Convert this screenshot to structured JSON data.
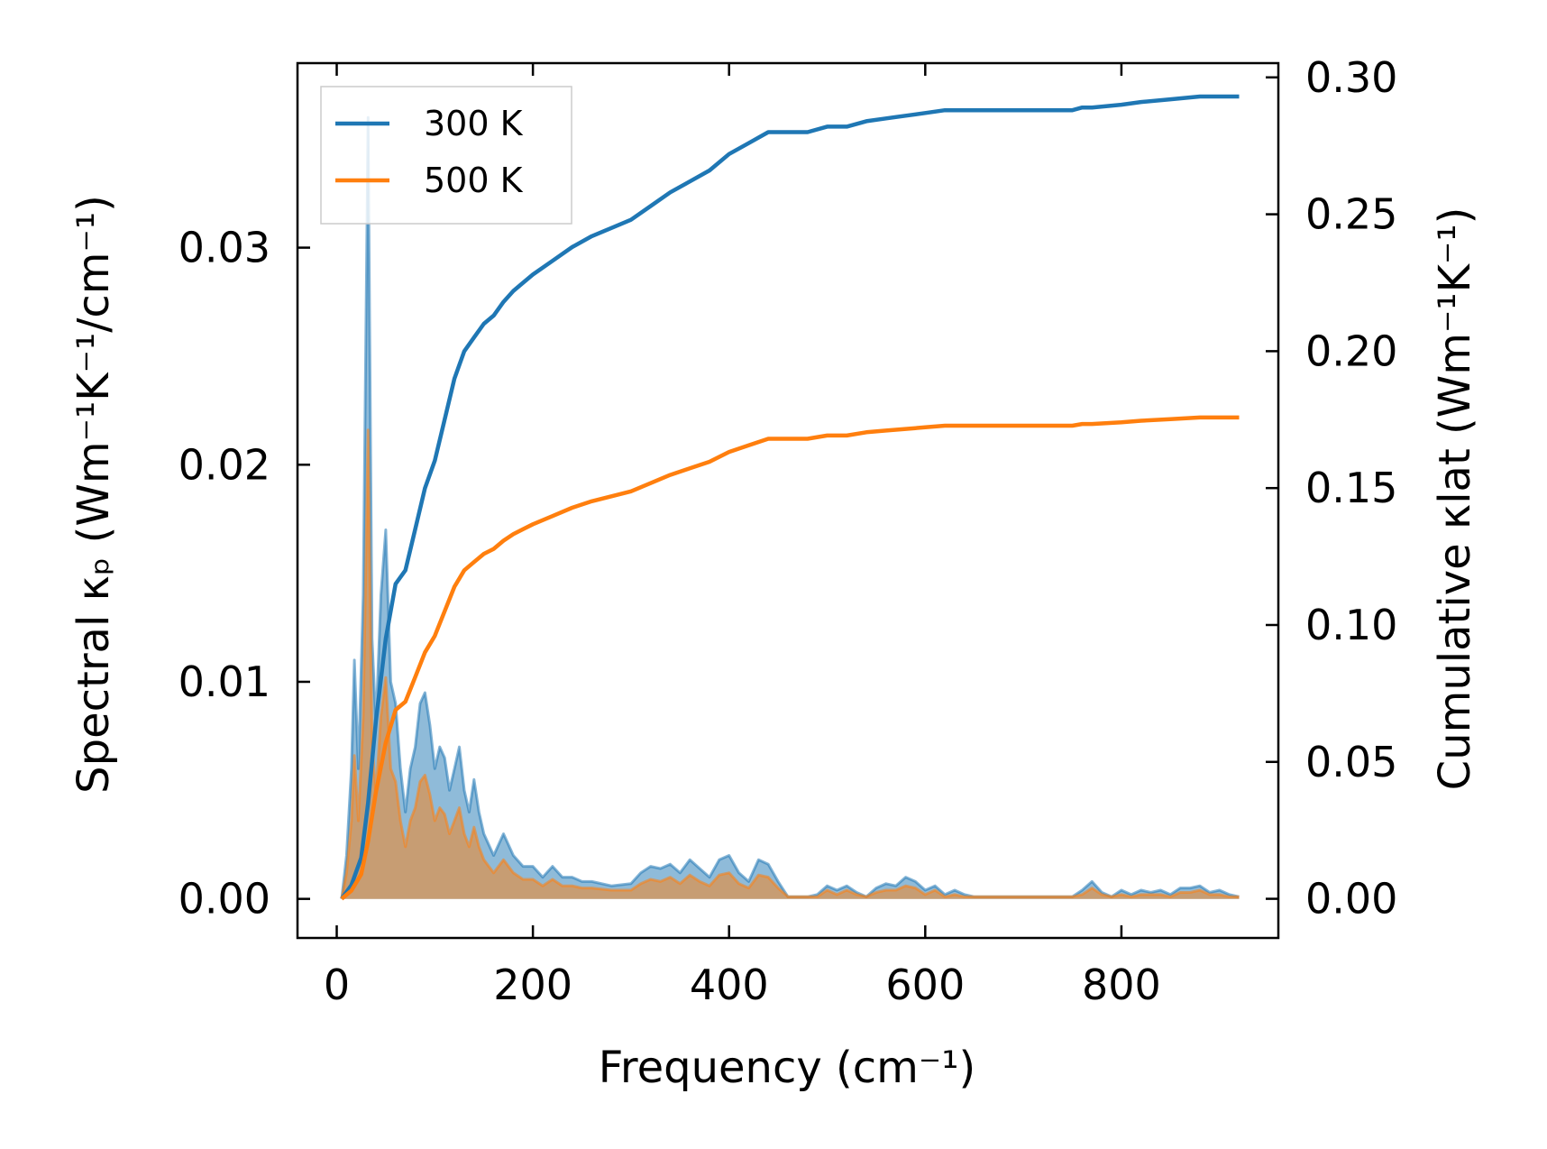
{
  "chart_data": {
    "type": "line",
    "xlabel": "Frequency (cm⁻¹)",
    "ylabel_left": "Spectral κₚ (Wm⁻¹K⁻¹/cm⁻¹)",
    "ylabel_right": "Cumulative κlat (Wm⁻¹K⁻¹)",
    "xlim": [
      -40,
      960
    ],
    "ylim_left": [
      -0.0018,
      0.0385
    ],
    "ylim_right": [
      -0.0143,
      0.3052
    ],
    "xticks": [
      0,
      200,
      400,
      600,
      800
    ],
    "yticks_left": [
      0.0,
      0.01,
      0.02,
      0.03
    ],
    "yticks_right": [
      0.0,
      0.05,
      0.1,
      0.15,
      0.2,
      0.25,
      0.3
    ],
    "tick_labels_x": [
      "0",
      "200",
      "400",
      "600",
      "800"
    ],
    "tick_labels_left": [
      "0.00",
      "0.01",
      "0.02",
      "0.03"
    ],
    "tick_labels_right": [
      "0.00",
      "0.05",
      "0.10",
      "0.15",
      "0.20",
      "0.25",
      "0.30"
    ],
    "legend_position": "top-left",
    "series": [
      {
        "name": "300 K",
        "color": "#1f77b4",
        "spectral": {
          "x": [
            5,
            10,
            15,
            18,
            22,
            27,
            32,
            36,
            40,
            45,
            50,
            55,
            60,
            65,
            70,
            75,
            80,
            85,
            90,
            95,
            100,
            105,
            110,
            115,
            120,
            125,
            130,
            135,
            140,
            145,
            150,
            160,
            170,
            180,
            190,
            200,
            210,
            220,
            230,
            240,
            250,
            260,
            280,
            300,
            310,
            320,
            330,
            340,
            350,
            360,
            370,
            380,
            390,
            400,
            410,
            420,
            430,
            440,
            450,
            460,
            470,
            480,
            490,
            500,
            510,
            520,
            530,
            540,
            550,
            560,
            570,
            580,
            590,
            600,
            610,
            620,
            630,
            640,
            650,
            700,
            750,
            760,
            770,
            780,
            790,
            800,
            810,
            820,
            830,
            840,
            850,
            860,
            870,
            880,
            890,
            900,
            910,
            920
          ],
          "y": [
            0,
            0.002,
            0.006,
            0.011,
            0.006,
            0.014,
            0.036,
            0.012,
            0.008,
            0.014,
            0.017,
            0.01,
            0.009,
            0.006,
            0.004,
            0.006,
            0.007,
            0.009,
            0.0095,
            0.008,
            0.006,
            0.007,
            0.0065,
            0.005,
            0.006,
            0.007,
            0.005,
            0.004,
            0.0055,
            0.004,
            0.003,
            0.002,
            0.003,
            0.002,
            0.0015,
            0.0015,
            0.001,
            0.0015,
            0.001,
            0.001,
            0.0008,
            0.0008,
            0.0006,
            0.0007,
            0.0012,
            0.0015,
            0.0014,
            0.0016,
            0.0012,
            0.0018,
            0.0014,
            0.001,
            0.0018,
            0.002,
            0.0012,
            0.0008,
            0.0018,
            0.0016,
            0.0008,
            0.0001,
            0.0001,
            0.0001,
            0.0002,
            0.0006,
            0.0004,
            0.0006,
            0.0003,
            0.0001,
            0.0005,
            0.0007,
            0.0006,
            0.001,
            0.0008,
            0.0004,
            0.0006,
            0.0002,
            0.0004,
            0.0002,
            0.0001,
            0.0001,
            0.0001,
            0.0004,
            0.0008,
            0.0003,
            0.0001,
            0.0004,
            0.0002,
            0.0004,
            0.0003,
            0.0004,
            0.0002,
            0.0005,
            0.0005,
            0.0006,
            0.0003,
            0.0004,
            0.0002,
            0.0001
          ]
        },
        "cumulative": {
          "x": [
            5,
            15,
            25,
            32,
            40,
            50,
            60,
            70,
            80,
            90,
            100,
            110,
            120,
            130,
            140,
            150,
            160,
            170,
            180,
            190,
            200,
            220,
            240,
            260,
            280,
            300,
            320,
            340,
            360,
            380,
            400,
            420,
            440,
            460,
            480,
            500,
            520,
            540,
            560,
            580,
            600,
            620,
            640,
            660,
            700,
            750,
            760,
            770,
            800,
            820,
            850,
            880,
            900,
            920
          ],
          "y": [
            0,
            0.005,
            0.015,
            0.035,
            0.065,
            0.095,
            0.115,
            0.12,
            0.135,
            0.15,
            0.16,
            0.175,
            0.19,
            0.2,
            0.205,
            0.21,
            0.213,
            0.218,
            0.222,
            0.225,
            0.228,
            0.233,
            0.238,
            0.242,
            0.245,
            0.248,
            0.253,
            0.258,
            0.262,
            0.266,
            0.272,
            0.276,
            0.28,
            0.28,
            0.28,
            0.282,
            0.282,
            0.284,
            0.285,
            0.286,
            0.287,
            0.288,
            0.288,
            0.288,
            0.288,
            0.288,
            0.289,
            0.289,
            0.29,
            0.291,
            0.292,
            0.293,
            0.293,
            0.293
          ]
        }
      },
      {
        "name": "500 K",
        "color": "#ff7f0e",
        "spectral": {
          "x": [
            5,
            10,
            15,
            18,
            22,
            27,
            32,
            36,
            40,
            45,
            50,
            55,
            60,
            65,
            70,
            75,
            80,
            85,
            90,
            95,
            100,
            105,
            110,
            115,
            120,
            125,
            130,
            135,
            140,
            145,
            150,
            160,
            170,
            180,
            190,
            200,
            210,
            220,
            230,
            240,
            250,
            260,
            280,
            300,
            310,
            320,
            330,
            340,
            350,
            360,
            370,
            380,
            390,
            400,
            410,
            420,
            430,
            440,
            450,
            460,
            470,
            480,
            490,
            500,
            510,
            520,
            530,
            540,
            550,
            560,
            570,
            580,
            590,
            600,
            610,
            620,
            630,
            640,
            650,
            700,
            750,
            760,
            770,
            780,
            790,
            800,
            810,
            820,
            830,
            840,
            850,
            860,
            870,
            880,
            890,
            900,
            910,
            920
          ],
          "y": [
            0,
            0.0012,
            0.0036,
            0.0066,
            0.0036,
            0.0084,
            0.0216,
            0.0072,
            0.0048,
            0.0084,
            0.0102,
            0.006,
            0.0054,
            0.0036,
            0.0024,
            0.0036,
            0.0042,
            0.0054,
            0.0057,
            0.0048,
            0.0036,
            0.0042,
            0.0039,
            0.003,
            0.0036,
            0.0042,
            0.003,
            0.0024,
            0.0033,
            0.0024,
            0.0018,
            0.0012,
            0.0018,
            0.0012,
            0.0009,
            0.0009,
            0.0006,
            0.0009,
            0.0006,
            0.0006,
            0.0005,
            0.0005,
            0.0004,
            0.0004,
            0.0007,
            0.0009,
            0.0008,
            0.001,
            0.0007,
            0.0011,
            0.0008,
            0.0006,
            0.0011,
            0.0012,
            0.0007,
            0.0005,
            0.0011,
            0.001,
            0.0005,
            0.0001,
            0.0001,
            0.0001,
            0.0001,
            0.0004,
            0.0002,
            0.0004,
            0.0002,
            0.0001,
            0.0003,
            0.0004,
            0.0004,
            0.0006,
            0.0005,
            0.0002,
            0.0004,
            0.0001,
            0.0002,
            0.0001,
            0.0001,
            0.0001,
            0.0001,
            0.0002,
            0.0005,
            0.0002,
            0.0001,
            0.0002,
            0.0001,
            0.0002,
            0.0002,
            0.0002,
            0.0001,
            0.0003,
            0.0003,
            0.0004,
            0.0002,
            0.0002,
            0.0001,
            0.0001
          ]
        },
        "cumulative": {
          "x": [
            5,
            15,
            25,
            32,
            40,
            50,
            60,
            70,
            80,
            90,
            100,
            110,
            120,
            130,
            140,
            150,
            160,
            170,
            180,
            190,
            200,
            220,
            240,
            260,
            280,
            300,
            320,
            340,
            360,
            380,
            400,
            420,
            440,
            460,
            480,
            500,
            520,
            540,
            560,
            580,
            600,
            620,
            640,
            660,
            700,
            750,
            760,
            770,
            800,
            820,
            850,
            880,
            900,
            920
          ],
          "y": [
            0,
            0.003,
            0.009,
            0.021,
            0.039,
            0.057,
            0.069,
            0.072,
            0.081,
            0.09,
            0.096,
            0.105,
            0.114,
            0.12,
            0.123,
            0.126,
            0.1278,
            0.1308,
            0.1332,
            0.135,
            0.1368,
            0.1398,
            0.1428,
            0.1452,
            0.147,
            0.1488,
            0.1518,
            0.1548,
            0.1572,
            0.1596,
            0.1632,
            0.1656,
            0.168,
            0.168,
            0.168,
            0.1692,
            0.1692,
            0.1704,
            0.171,
            0.1716,
            0.1722,
            0.1728,
            0.1728,
            0.1728,
            0.1728,
            0.1728,
            0.1734,
            0.1734,
            0.174,
            0.1746,
            0.1752,
            0.1758,
            0.1758,
            0.1758
          ]
        }
      }
    ]
  }
}
